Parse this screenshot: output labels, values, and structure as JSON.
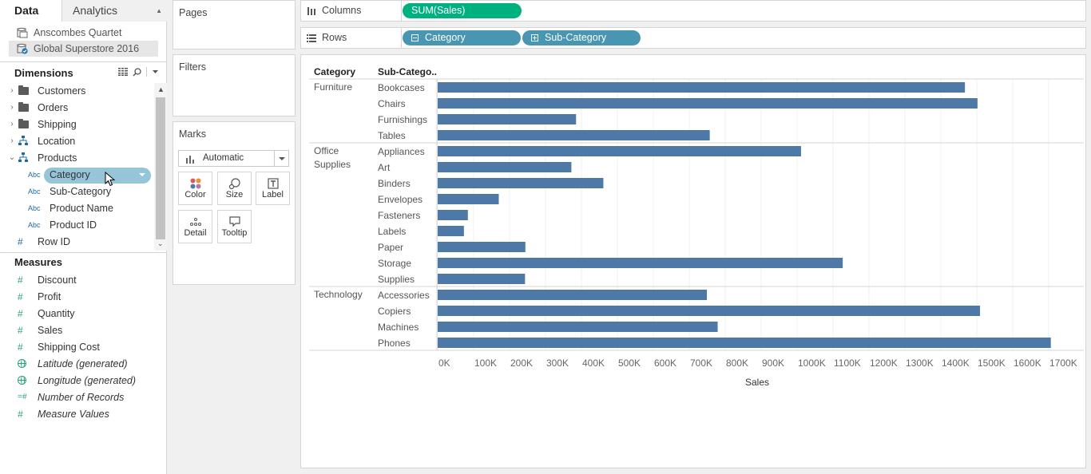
{
  "tabs": {
    "data": "Data",
    "analytics": "Analytics"
  },
  "datasources": [
    "Anscombes Quartet",
    "Global Superstore 2016"
  ],
  "dimensions": {
    "title": "Dimensions",
    "items": [
      {
        "label": "Customers",
        "icon": "folder-icon"
      },
      {
        "label": "Orders",
        "icon": "folder-icon"
      },
      {
        "label": "Shipping",
        "icon": "folder-icon"
      },
      {
        "label": "Location",
        "icon": "hierarchy-icon"
      },
      {
        "label": "Products",
        "icon": "hierarchy-icon"
      },
      {
        "label": "Category",
        "icon": "abc-icon"
      },
      {
        "label": "Sub-Category",
        "icon": "abc-icon"
      },
      {
        "label": "Product Name",
        "icon": "abc-icon"
      },
      {
        "label": "Product ID",
        "icon": "abc-icon"
      },
      {
        "label": "Row ID",
        "icon": "hash-icon"
      }
    ],
    "abc": "Abc"
  },
  "measures": {
    "title": "Measures",
    "items": [
      {
        "label": "Discount"
      },
      {
        "label": "Profit"
      },
      {
        "label": "Quantity"
      },
      {
        "label": "Sales"
      },
      {
        "label": "Shipping Cost"
      },
      {
        "label": "Latitude (generated)"
      },
      {
        "label": "Longitude (generated)"
      },
      {
        "label": "Number of Records"
      },
      {
        "label": "Measure Values"
      }
    ]
  },
  "cards": {
    "pages": "Pages",
    "filters": "Filters",
    "marks": "Marks"
  },
  "marks": {
    "type": "Automatic",
    "buttons": [
      "Color",
      "Size",
      "Label",
      "Detail",
      "Tooltip"
    ]
  },
  "shelves": {
    "columns_label": "Columns",
    "rows_label": "Rows",
    "columns_pill": "SUM(Sales)",
    "rows_pills": [
      "Category",
      "Sub-Category"
    ]
  },
  "colors": {
    "bar": "#4e79a7",
    "green_pill": "#00b180",
    "blue_pill": "#4996b2"
  },
  "chart_data": {
    "type": "bar",
    "orientation": "horizontal",
    "row_headers": [
      "Category",
      "Sub-Catego.."
    ],
    "xlabel": "Sales",
    "xlim": [
      0,
      1800000
    ],
    "x_ticks": [
      {
        "v": 0,
        "label": "0K"
      },
      {
        "v": 100000,
        "label": "100K"
      },
      {
        "v": 200000,
        "label": "200K"
      },
      {
        "v": 300000,
        "label": "300K"
      },
      {
        "v": 400000,
        "label": "400K"
      },
      {
        "v": 500000,
        "label": "500K"
      },
      {
        "v": 600000,
        "label": "600K"
      },
      {
        "v": 700000,
        "label": "700K"
      },
      {
        "v": 800000,
        "label": "800K"
      },
      {
        "v": 900000,
        "label": "900K"
      },
      {
        "v": 1000000,
        "label": "1000K"
      },
      {
        "v": 1100000,
        "label": "1100K"
      },
      {
        "v": 1200000,
        "label": "1200K"
      },
      {
        "v": 1300000,
        "label": "1300K"
      },
      {
        "v": 1400000,
        "label": "1400K"
      },
      {
        "v": 1500000,
        "label": "1500K"
      },
      {
        "v": 1600000,
        "label": "1600K"
      },
      {
        "v": 1700000,
        "label": "1700K"
      }
    ],
    "groups": [
      {
        "category": "Furniture",
        "items": [
          {
            "name": "Bookcases",
            "value": 1467000
          },
          {
            "name": "Chairs",
            "value": 1502000
          },
          {
            "name": "Furnishings",
            "value": 385000
          },
          {
            "name": "Tables",
            "value": 757000
          }
        ]
      },
      {
        "category": "Office Supplies",
        "items": [
          {
            "name": "Appliances",
            "value": 1011000
          },
          {
            "name": "Art",
            "value": 372000
          },
          {
            "name": "Binders",
            "value": 461000
          },
          {
            "name": "Envelopes",
            "value": 170000
          },
          {
            "name": "Fasteners",
            "value": 84000
          },
          {
            "name": "Labels",
            "value": 73000
          },
          {
            "name": "Paper",
            "value": 244000
          },
          {
            "name": "Storage",
            "value": 1127000
          },
          {
            "name": "Supplies",
            "value": 243000
          }
        ]
      },
      {
        "category": "Technology",
        "items": [
          {
            "name": "Accessories",
            "value": 749000
          },
          {
            "name": "Copiers",
            "value": 1509000
          },
          {
            "name": "Machines",
            "value": 779000
          },
          {
            "name": "Phones",
            "value": 1706000
          }
        ]
      }
    ]
  }
}
